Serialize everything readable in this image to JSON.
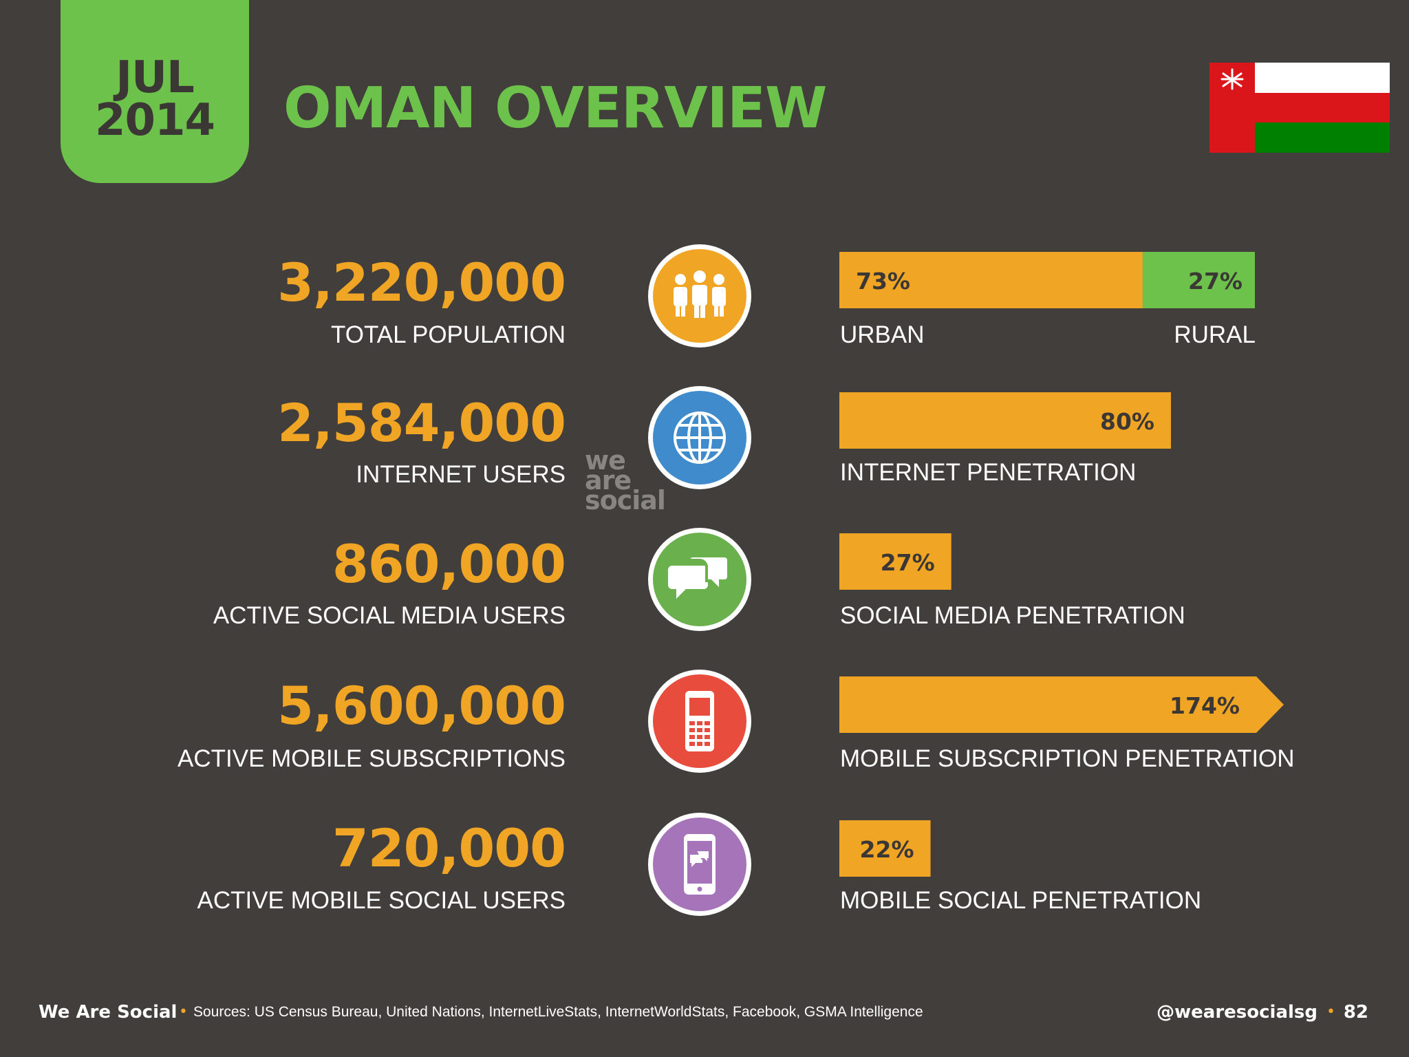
{
  "header": {
    "month": "JUL",
    "year": "2014",
    "title": "OMAN OVERVIEW"
  },
  "flag": {
    "name": "oman-flag",
    "colors": [
      "#ffffff",
      "#db161b",
      "#008000"
    ]
  },
  "colors": {
    "accent_orange": "#f0a525",
    "accent_green": "#6cc24a",
    "background": "#423e3c"
  },
  "rows": [
    {
      "value": "3,220,000",
      "label": "TOTAL POPULATION",
      "icon": "people-icon",
      "icon_color": "#f0a525"
    },
    {
      "value": "2,584,000",
      "label": "INTERNET USERS",
      "icon": "globe-icon",
      "icon_color": "#3f8bcb"
    },
    {
      "value": "860,000",
      "label": "ACTIVE SOCIAL MEDIA USERS",
      "icon": "chat-bubbles-icon",
      "icon_color": "#6ab04c"
    },
    {
      "value": "5,600,000",
      "label": "ACTIVE MOBILE SUBSCRIPTIONS",
      "icon": "mobile-phone-icon",
      "icon_color": "#e84c3d"
    },
    {
      "value": "720,000",
      "label": "ACTIVE MOBILE SOCIAL USERS",
      "icon": "smartphone-chat-icon",
      "icon_color": "#a674b8"
    }
  ],
  "chart_data": [
    {
      "type": "bar",
      "stacked": true,
      "categories": [
        "URBAN",
        "RURAL"
      ],
      "values": [
        73,
        27
      ],
      "value_labels": [
        "73%",
        "27%"
      ],
      "colors": [
        "#f0a525",
        "#6cc24a"
      ]
    },
    {
      "type": "bar",
      "categories": [
        "INTERNET PENETRATION"
      ],
      "values": [
        80
      ],
      "value_labels": [
        "80%"
      ],
      "colors": [
        "#f0a525"
      ]
    },
    {
      "type": "bar",
      "categories": [
        "SOCIAL MEDIA PENETRATION"
      ],
      "values": [
        27
      ],
      "value_labels": [
        "27%"
      ],
      "colors": [
        "#f0a525"
      ]
    },
    {
      "type": "bar",
      "categories": [
        "MOBILE SUBSCRIPTION PENETRATION"
      ],
      "values": [
        174
      ],
      "value_labels": [
        "174%"
      ],
      "colors": [
        "#f0a525"
      ],
      "overflow_arrow": true
    },
    {
      "type": "bar",
      "categories": [
        "MOBILE SOCIAL PENETRATION"
      ],
      "values": [
        22
      ],
      "value_labels": [
        "22%"
      ],
      "colors": [
        "#f0a525"
      ]
    }
  ],
  "watermark": {
    "line1": "we",
    "line2": "are",
    "line3": "social"
  },
  "footer": {
    "brand": "We Are Social",
    "separator": "•",
    "sources": "Sources: US Census Bureau, United Nations, InternetLiveStats, InternetWorldStats, Facebook, GSMA Intelligence",
    "handle": "@wearesocialsg",
    "page": "82"
  }
}
